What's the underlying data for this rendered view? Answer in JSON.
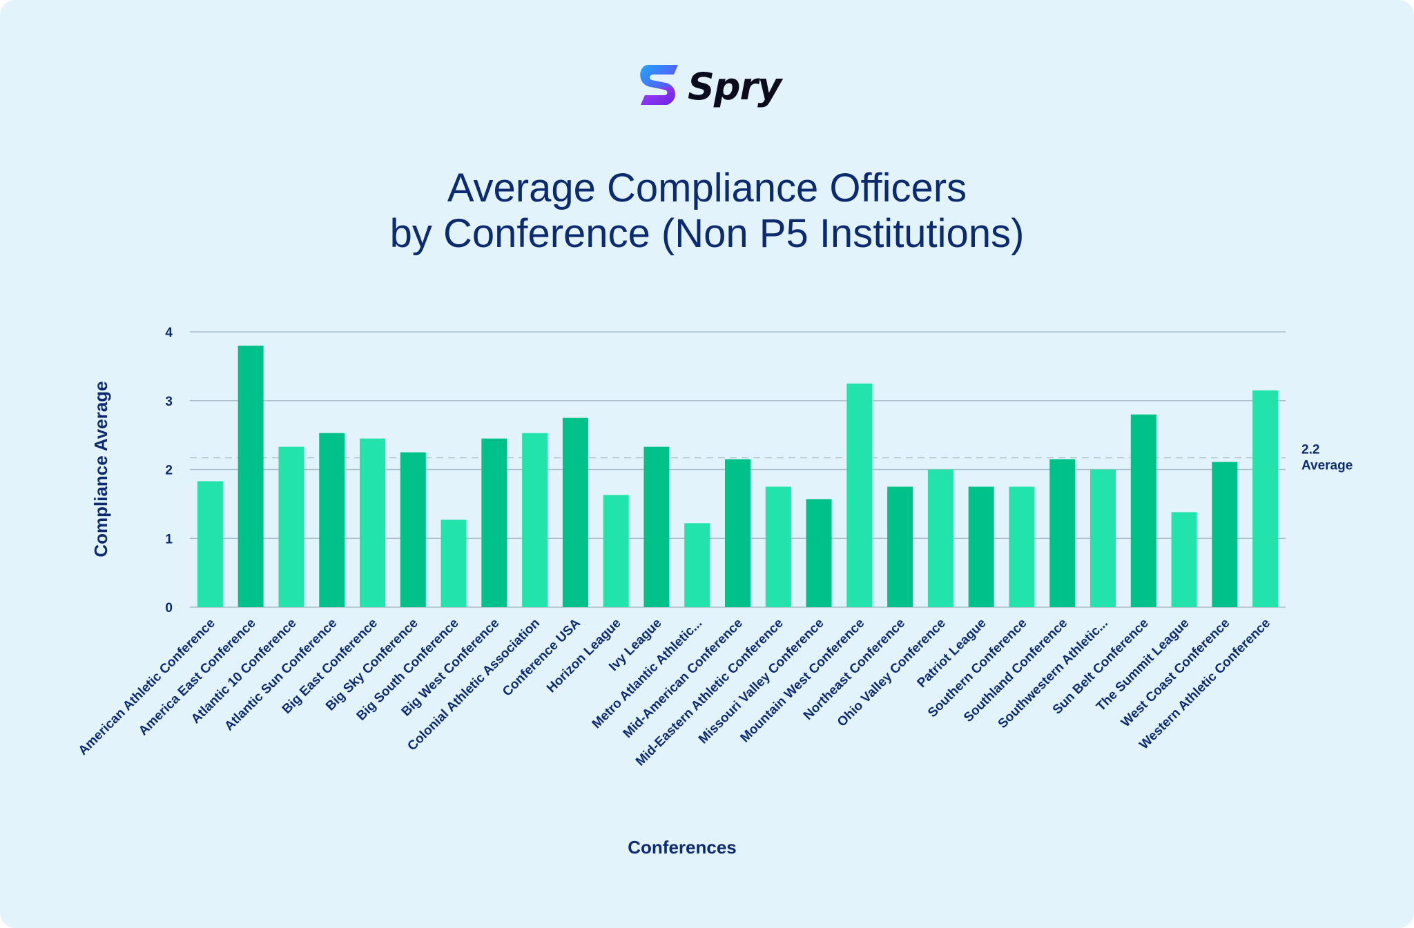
{
  "brand": {
    "name": "Spry",
    "colors": {
      "primary": "#7a2cf0",
      "accent": "#1fa6ff"
    }
  },
  "title": {
    "line1": "Average Compliance Officers",
    "line2": "by Conference (Non P5 Institutions)"
  },
  "chart_data": {
    "type": "bar",
    "title": "Average Compliance Officers by Conference (Non P5 Institutions)",
    "xlabel": "Conferences",
    "ylabel": "Compliance Average",
    "ylim": [
      0,
      4
    ],
    "yticks": [
      "0",
      "1",
      "2",
      "3",
      "4"
    ],
    "grid": true,
    "reference_line": {
      "value": 2.17,
      "label_value": "2.2",
      "label_text": "Average"
    },
    "colors": {
      "light": "#22e3aa",
      "dark": "#00c289",
      "grid": "#a9bfcb",
      "text": "#0c2a6e"
    },
    "categories": [
      "American Athletic Conference",
      "America East Conference",
      "Atlantic 10 Conference",
      "Atlantic Sun Conference",
      "Big East Conference",
      "Big Sky Conference",
      "Big South Conference",
      "Big West Conference",
      "Colonial Athletic Association",
      "Conference USA",
      "Horizon League",
      "Ivy League",
      "Metro Atlantic Athletic...",
      "Mid-American Conference",
      "Mid-Eastern Athletic Conference",
      "Missouri Valley Conference",
      "Mountain West Conference",
      "Northeast Conference",
      "Ohio Valley Conference",
      "Patriot League",
      "Southern Conference",
      "Southland Conference",
      "Southwestern Athletic...",
      "Sun Belt Conference",
      "The Summit League",
      "West Coast Conference",
      "Western Athletic Conference"
    ],
    "values": [
      1.83,
      3.8,
      2.33,
      2.53,
      2.45,
      2.25,
      1.27,
      2.45,
      2.53,
      2.75,
      1.63,
      2.33,
      1.22,
      2.15,
      1.75,
      1.57,
      3.25,
      1.75,
      2.0,
      1.75,
      1.75,
      2.15,
      2.0,
      2.8,
      1.38,
      2.11,
      3.15
    ]
  }
}
